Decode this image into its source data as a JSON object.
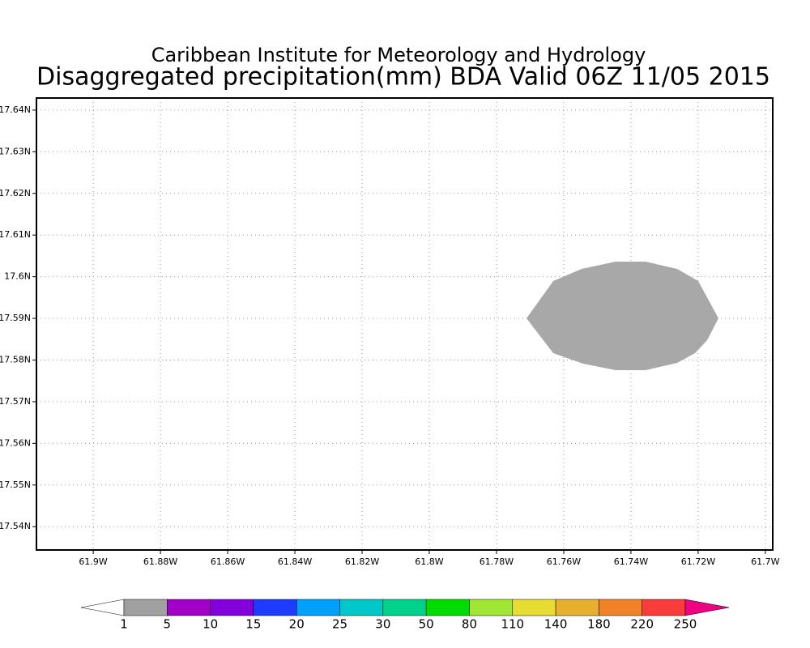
{
  "title": "Disaggregated precipitation(mm) BDA Valid 06Z 11/05 2015",
  "subtitle": "Caribbean Institute for Meteorology and Hydrology",
  "xlim": [
    -61.9169,
    -61.6978
  ],
  "ylim": [
    17.5344,
    17.6429
  ],
  "xticks": [
    {
      "value": -61.9,
      "label": "61.9W"
    },
    {
      "value": -61.88,
      "label": "61.88W"
    },
    {
      "value": -61.86,
      "label": "61.86W"
    },
    {
      "value": -61.84,
      "label": "61.84W"
    },
    {
      "value": -61.82,
      "label": "61.82W"
    },
    {
      "value": -61.8,
      "label": "61.8W"
    },
    {
      "value": -61.78,
      "label": "61.78W"
    },
    {
      "value": -61.76,
      "label": "61.76W"
    },
    {
      "value": -61.74,
      "label": "61.74W"
    },
    {
      "value": -61.72,
      "label": "61.72W"
    },
    {
      "value": -61.7,
      "label": "61.7W"
    }
  ],
  "yticks": [
    {
      "value": 17.64,
      "label": "17.64N"
    },
    {
      "value": 17.63,
      "label": "17.63N"
    },
    {
      "value": 17.62,
      "label": "17.62N"
    },
    {
      "value": 17.61,
      "label": "17.61N"
    },
    {
      "value": 17.6,
      "label": "17.6N"
    },
    {
      "value": 17.59,
      "label": "17.59N"
    },
    {
      "value": 17.58,
      "label": "17.58N"
    },
    {
      "value": 17.57,
      "label": "17.57N"
    },
    {
      "value": 17.56,
      "label": "17.56N"
    },
    {
      "value": 17.55,
      "label": "17.55N"
    },
    {
      "value": 17.54,
      "label": "17.54N"
    }
  ],
  "grid": true,
  "colorbar": {
    "levels": [
      1,
      5,
      10,
      15,
      20,
      25,
      30,
      50,
      80,
      110,
      140,
      180,
      220,
      250
    ],
    "colors": [
      "#ffffff",
      "#a0a0a0",
      "#a000c8",
      "#8200dc",
      "#1e3cff",
      "#00a0ff",
      "#00c8c8",
      "#00d28c",
      "#00dc00",
      "#a0e632",
      "#e6dc32",
      "#e6af2d",
      "#f08228",
      "#fa3c3c",
      "#f00082"
    ]
  }
}
